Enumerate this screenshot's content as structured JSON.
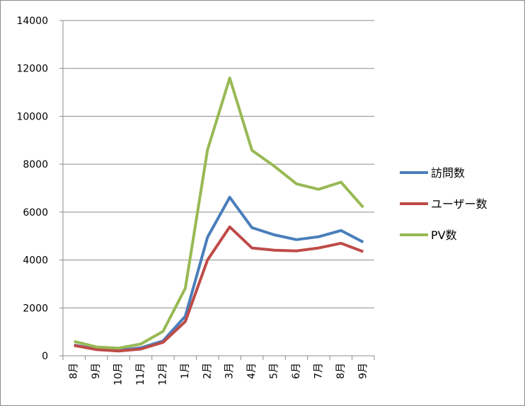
{
  "chart_data": {
    "type": "line",
    "title": "",
    "xlabel": "",
    "ylabel": "",
    "categories": [
      "8月",
      "9月",
      "10月",
      "11月",
      "12月",
      "1月",
      "2月",
      "3月",
      "4月",
      "5月",
      "6月",
      "7月",
      "8月",
      "9月"
    ],
    "ylim": [
      0,
      14000
    ],
    "yticks": [
      0,
      2000,
      4000,
      6000,
      8000,
      10000,
      12000,
      14000
    ],
    "grid": "horizontal",
    "legend_position": "right",
    "series": [
      {
        "name": "訪問数",
        "color": "#4a7ebb",
        "values": [
          450,
          280,
          230,
          330,
          620,
          1650,
          4950,
          6620,
          5350,
          5050,
          4850,
          4970,
          5230,
          4750
        ]
      },
      {
        "name": "ユーザー数",
        "color": "#be4b48",
        "values": [
          430,
          260,
          200,
          280,
          560,
          1430,
          4000,
          5380,
          4500,
          4410,
          4380,
          4500,
          4700,
          4350
        ]
      },
      {
        "name": "PV数",
        "color": "#98b954",
        "values": [
          600,
          370,
          320,
          490,
          1020,
          2820,
          8600,
          11600,
          8580,
          7920,
          7180,
          6950,
          7250,
          6200
        ]
      }
    ]
  }
}
